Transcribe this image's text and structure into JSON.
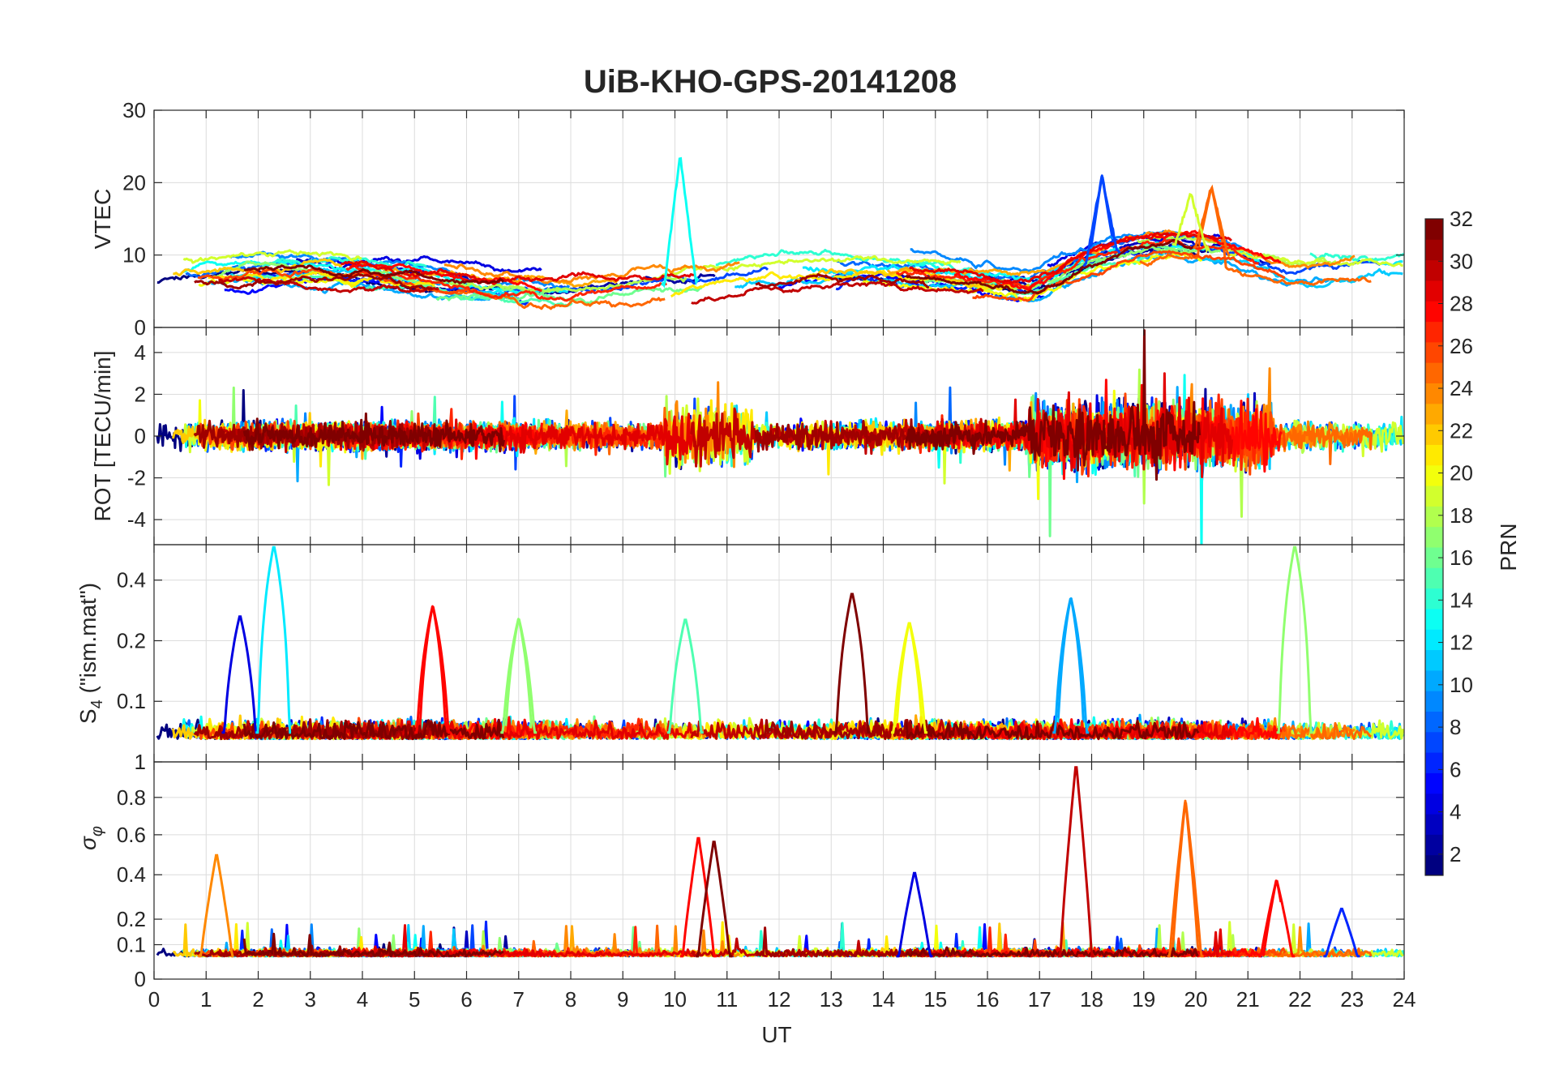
{
  "figure": {
    "title": "UiB-KHO-GPS-20141208",
    "xlabel": "UT"
  },
  "colors": {
    "grid": "#dcdcdc",
    "axes": "#262626",
    "background": "#ffffff",
    "colormap": "jet"
  },
  "colorbar": {
    "label": "PRN",
    "range": [
      1,
      32
    ],
    "ticks": [
      2,
      4,
      6,
      8,
      10,
      12,
      14,
      16,
      18,
      20,
      22,
      24,
      26,
      28,
      30,
      32
    ]
  },
  "chart_data": [
    {
      "type": "line",
      "ylabel": "VTEC",
      "xlim": [
        0,
        24
      ],
      "ylim": [
        0,
        30
      ],
      "yticks": [
        0,
        10,
        20,
        30
      ],
      "grid": true,
      "series_by_prn": true,
      "peaks": [
        {
          "prn": 13,
          "x": 10.1,
          "y": 24
        },
        {
          "prn": 7,
          "x": 18.2,
          "y": 21
        },
        {
          "prn": 25,
          "x": 20.3,
          "y": 19.5
        },
        {
          "prn": 19,
          "x": 19.9,
          "y": 18.5
        }
      ],
      "baseline_level": [
        4,
        10
      ]
    },
    {
      "type": "line",
      "ylabel": "ROT [TECU/min]",
      "xlim": [
        0,
        24
      ],
      "ylim": [
        -5.2,
        5.2
      ],
      "yticks": [
        -4,
        -2,
        0,
        2,
        4
      ],
      "grid": true,
      "series_by_prn": true,
      "high_activity_ranges": [
        [
          9.8,
          11.5
        ],
        [
          16.8,
          21.5
        ]
      ]
    },
    {
      "type": "line",
      "ylabel": "S4 (\"ism.mat\")",
      "xlim": [
        0,
        24
      ],
      "ylim": [
        0.05,
        0.6
      ],
      "yticks": [
        0.1,
        0.2,
        0.4
      ],
      "grid": true,
      "series_by_prn": true,
      "peaks": [
        {
          "prn": 4,
          "x": 1.65,
          "y": 0.27
        },
        {
          "prn": 12,
          "x": 2.3,
          "y": 0.6
        },
        {
          "prn": 28,
          "x": 5.35,
          "y": 0.3
        },
        {
          "prn": 17,
          "x": 7.0,
          "y": 0.26
        },
        {
          "prn": 15,
          "x": 10.2,
          "y": 0.26
        },
        {
          "prn": 32,
          "x": 13.4,
          "y": 0.35
        },
        {
          "prn": 20,
          "x": 14.5,
          "y": 0.25
        },
        {
          "prn": 10,
          "x": 17.6,
          "y": 0.33
        },
        {
          "prn": 17,
          "x": 21.9,
          "y": 0.6
        }
      ]
    },
    {
      "type": "line",
      "ylabel": "σφ",
      "xlim": [
        0,
        24
      ],
      "ylim": [
        0,
        1
      ],
      "yticks": [
        0,
        0.1,
        0.2,
        0.4,
        0.6,
        0.8,
        1
      ],
      "grid": true,
      "series_by_prn": true,
      "peaks": [
        {
          "prn": 24,
          "x": 1.2,
          "y": 0.51
        },
        {
          "prn": 28,
          "x": 10.45,
          "y": 0.6
        },
        {
          "prn": 32,
          "x": 10.75,
          "y": 0.58
        },
        {
          "prn": 4,
          "x": 14.6,
          "y": 0.42
        },
        {
          "prn": 30,
          "x": 17.7,
          "y": 1.0
        },
        {
          "prn": 25,
          "x": 19.8,
          "y": 0.79
        },
        {
          "prn": 28,
          "x": 21.55,
          "y": 0.38
        },
        {
          "prn": 6,
          "x": 22.8,
          "y": 0.25
        }
      ]
    }
  ],
  "x_ticks": [
    0,
    1,
    2,
    3,
    4,
    5,
    6,
    7,
    8,
    9,
    10,
    11,
    12,
    13,
    14,
    15,
    16,
    17,
    18,
    19,
    20,
    21,
    22,
    23,
    24
  ]
}
